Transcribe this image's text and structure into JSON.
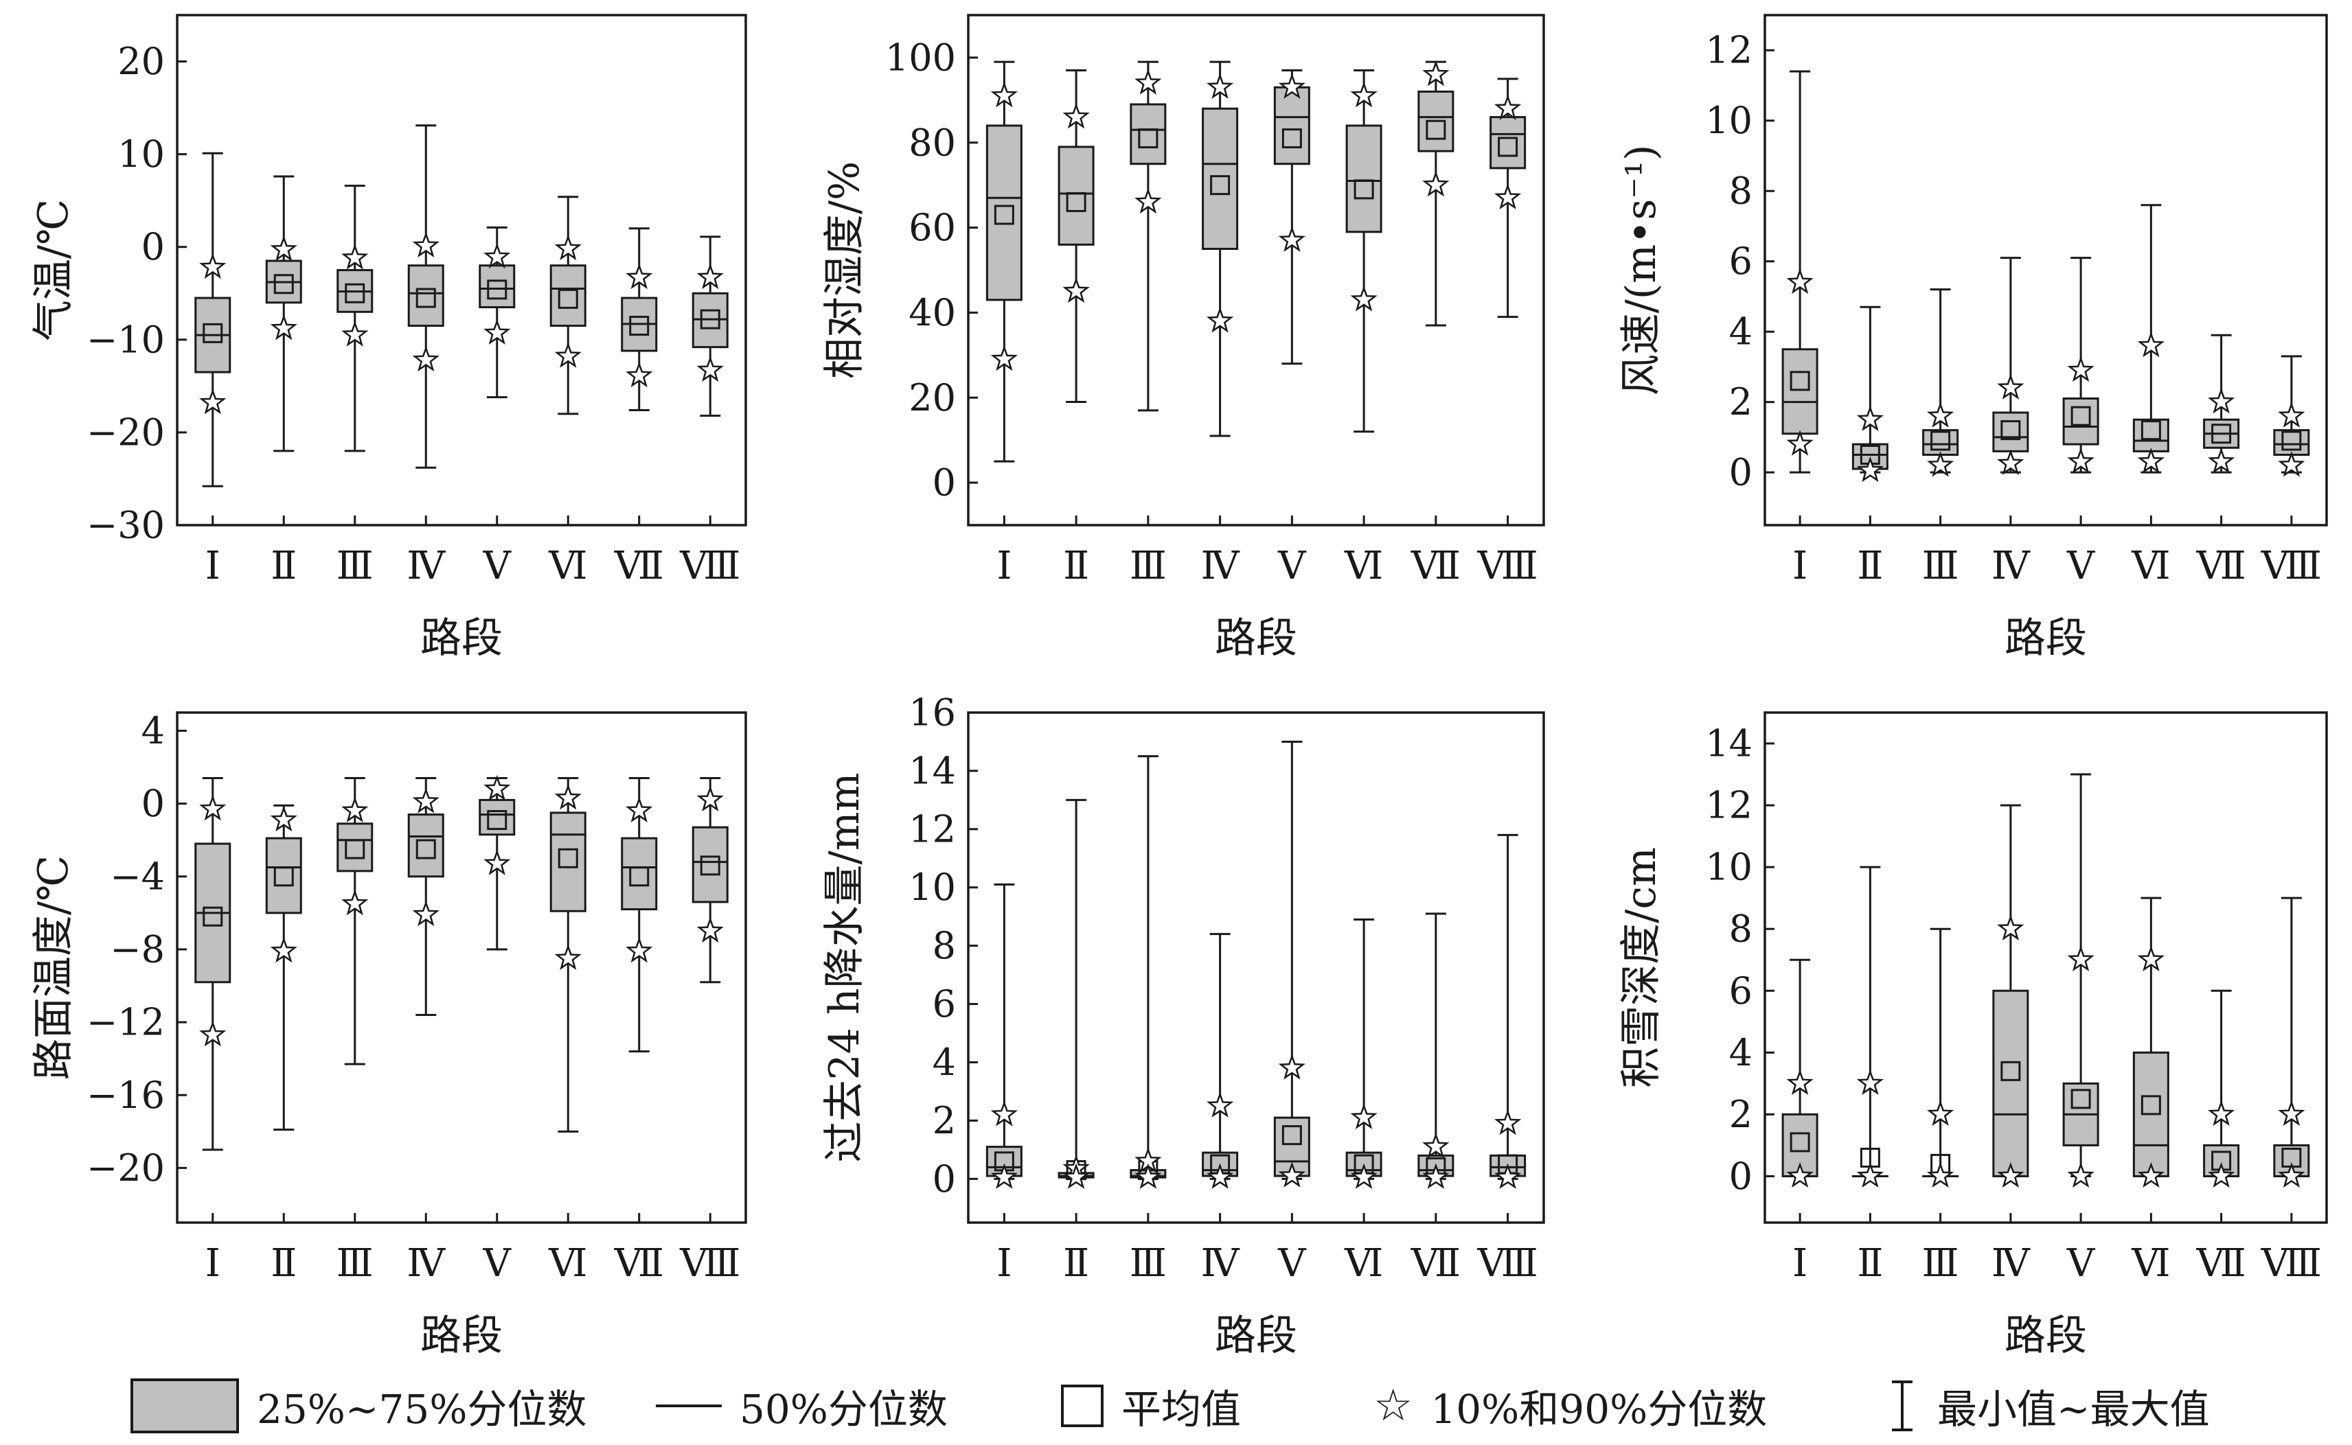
{
  "categories": [
    "Ⅰ",
    "Ⅱ",
    "Ⅲ",
    "Ⅳ",
    "Ⅴ",
    "Ⅵ",
    "Ⅶ",
    "Ⅷ"
  ],
  "xlabel": "路段",
  "chart_data": [
    {
      "type": "box",
      "ylabel": "气温/℃",
      "ylim": [
        -30,
        25
      ],
      "yticks": [
        -30,
        -20,
        -10,
        0,
        10,
        20
      ],
      "ytick_labels": [
        "−30",
        "−20",
        "−10",
        "0",
        "10",
        "20"
      ],
      "series": [
        {
          "min": -25.8,
          "p10": -16.8,
          "q1": -13.5,
          "median": -9.5,
          "q3": -5.5,
          "p90": -2.2,
          "max": 10.1,
          "mean": -9.3
        },
        {
          "min": -22.0,
          "p10": -8.8,
          "q1": -6.0,
          "median": -3.8,
          "q3": -1.5,
          "p90": -0.3,
          "max": 7.6,
          "mean": -4.0
        },
        {
          "min": -22.0,
          "p10": -9.5,
          "q1": -7.0,
          "median": -4.8,
          "q3": -2.5,
          "p90": -1.2,
          "max": 6.6,
          "mean": -5.0
        },
        {
          "min": -23.8,
          "p10": -12.2,
          "q1": -8.5,
          "median": -5.0,
          "q3": -2.0,
          "p90": 0.1,
          "max": 13.1,
          "mean": -5.5
        },
        {
          "min": -16.2,
          "p10": -9.3,
          "q1": -6.5,
          "median": -4.5,
          "q3": -2.0,
          "p90": -1.1,
          "max": 2.1,
          "mean": -4.6
        },
        {
          "min": -18.0,
          "p10": -11.8,
          "q1": -8.5,
          "median": -4.5,
          "q3": -2.0,
          "p90": -0.2,
          "max": 5.4,
          "mean": -5.6
        },
        {
          "min": -17.6,
          "p10": -13.9,
          "q1": -11.2,
          "median": -8.3,
          "q3": -5.5,
          "p90": -3.3,
          "max": 2.0,
          "mean": -8.5
        },
        {
          "min": -18.2,
          "p10": -13.3,
          "q1": -10.8,
          "median": -7.8,
          "q3": -5.0,
          "p90": -3.3,
          "max": 1.1,
          "mean": -7.8
        }
      ]
    },
    {
      "type": "box",
      "ylabel": "相对湿度/%",
      "ylim": [
        -10,
        110
      ],
      "yticks": [
        0,
        20,
        40,
        60,
        80,
        100
      ],
      "ytick_labels": [
        "0",
        "20",
        "40",
        "60",
        "80",
        "100"
      ],
      "series": [
        {
          "min": 5,
          "p10": 29,
          "q1": 43,
          "median": 67,
          "q3": 84,
          "p90": 91,
          "max": 99,
          "mean": 63
        },
        {
          "min": 19,
          "p10": 45,
          "q1": 56,
          "median": 68,
          "q3": 79,
          "p90": 86,
          "max": 97,
          "mean": 66
        },
        {
          "min": 17,
          "p10": 66,
          "q1": 75,
          "median": 83,
          "q3": 89,
          "p90": 94,
          "max": 99,
          "mean": 81
        },
        {
          "min": 11,
          "p10": 38,
          "q1": 55,
          "median": 75,
          "q3": 88,
          "p90": 93,
          "max": 99,
          "mean": 70
        },
        {
          "min": 28,
          "p10": 57,
          "q1": 75,
          "median": 86,
          "q3": 93,
          "p90": 93,
          "max": 97,
          "mean": 81
        },
        {
          "min": 12,
          "p10": 43,
          "q1": 59,
          "median": 71,
          "q3": 84,
          "p90": 91,
          "max": 97,
          "mean": 69
        },
        {
          "min": 37,
          "p10": 70,
          "q1": 78,
          "median": 86,
          "q3": 92,
          "p90": 96,
          "max": 99,
          "mean": 83
        },
        {
          "min": 39,
          "p10": 67,
          "q1": 74,
          "median": 82,
          "q3": 86,
          "p90": 88,
          "max": 95,
          "mean": 79
        }
      ]
    },
    {
      "type": "box",
      "ylabel": "风速/(m•s⁻¹)",
      "ylim": [
        -1.5,
        13
      ],
      "yticks": [
        0,
        2,
        4,
        6,
        8,
        10,
        12
      ],
      "ytick_labels": [
        "0",
        "2",
        "4",
        "6",
        "8",
        "10",
        "12"
      ],
      "series": [
        {
          "min": 0,
          "p10": 0.8,
          "q1": 1.1,
          "median": 2.0,
          "q3": 3.5,
          "p90": 5.4,
          "max": 11.4,
          "mean": 2.6
        },
        {
          "min": 0,
          "p10": 0.05,
          "q1": 0.1,
          "median": 0.5,
          "q3": 0.8,
          "p90": 1.5,
          "max": 4.7,
          "mean": 0.5
        },
        {
          "min": 0,
          "p10": 0.2,
          "q1": 0.5,
          "median": 0.8,
          "q3": 1.2,
          "p90": 1.6,
          "max": 5.2,
          "mean": 0.9
        },
        {
          "min": 0,
          "p10": 0.25,
          "q1": 0.6,
          "median": 1.0,
          "q3": 1.7,
          "p90": 2.4,
          "max": 6.1,
          "mean": 1.2
        },
        {
          "min": 0,
          "p10": 0.3,
          "q1": 0.8,
          "median": 1.3,
          "q3": 2.1,
          "p90": 2.9,
          "max": 6.1,
          "mean": 1.6
        },
        {
          "min": 0,
          "p10": 0.3,
          "q1": 0.6,
          "median": 0.9,
          "q3": 1.5,
          "p90": 3.6,
          "max": 7.6,
          "mean": 1.2
        },
        {
          "min": 0,
          "p10": 0.3,
          "q1": 0.7,
          "median": 1.1,
          "q3": 1.5,
          "p90": 2.0,
          "max": 3.9,
          "mean": 1.1
        },
        {
          "min": 0,
          "p10": 0.2,
          "q1": 0.5,
          "median": 0.8,
          "q3": 1.2,
          "p90": 1.6,
          "max": 3.3,
          "mean": 0.9
        }
      ]
    },
    {
      "type": "box",
      "ylabel": "路面温度/℃",
      "ylim": [
        -23,
        5
      ],
      "yticks": [
        -20,
        -16,
        -12,
        -8,
        -4,
        0,
        4
      ],
      "ytick_labels": [
        "−20",
        "−16",
        "−12",
        "−8",
        "−4",
        "0",
        "4"
      ],
      "series": [
        {
          "min": -19.0,
          "p10": -12.7,
          "q1": -9.8,
          "median": -6.0,
          "q3": -2.2,
          "p90": -0.3,
          "max": 1.4,
          "mean": -6.2
        },
        {
          "min": -17.9,
          "p10": -8.1,
          "q1": -6.0,
          "median": -3.5,
          "q3": -1.9,
          "p90": -0.9,
          "max": -0.1,
          "mean": -4.0
        },
        {
          "min": -14.3,
          "p10": -5.5,
          "q1": -3.7,
          "median": -2.0,
          "q3": -1.1,
          "p90": -0.4,
          "max": 1.4,
          "mean": -2.5
        },
        {
          "min": -11.6,
          "p10": -6.1,
          "q1": -4.0,
          "median": -1.8,
          "q3": -0.6,
          "p90": 0.1,
          "max": 1.4,
          "mean": -2.5
        },
        {
          "min": -8.0,
          "p10": -3.3,
          "q1": -1.7,
          "median": -0.6,
          "q3": 0.2,
          "p90": 0.8,
          "max": 1.4,
          "mean": -0.9
        },
        {
          "min": -18.0,
          "p10": -8.5,
          "q1": -5.9,
          "median": -1.7,
          "q3": -0.5,
          "p90": 0.3,
          "max": 1.4,
          "mean": -3.0
        },
        {
          "min": -13.6,
          "p10": -8.1,
          "q1": -5.8,
          "median": -3.5,
          "q3": -1.9,
          "p90": -0.4,
          "max": 1.4,
          "mean": -4.0
        },
        {
          "min": -9.8,
          "p10": -7.0,
          "q1": -5.4,
          "median": -3.2,
          "q3": -1.3,
          "p90": 0.2,
          "max": 1.4,
          "mean": -3.4
        }
      ]
    },
    {
      "type": "box",
      "ylabel": "过去24 h降水量/mm",
      "ylim": [
        -1.5,
        16
      ],
      "yticks": [
        0,
        2,
        4,
        6,
        8,
        10,
        12,
        14,
        16
      ],
      "ytick_labels": [
        "0",
        "2",
        "4",
        "6",
        "8",
        "10",
        "12",
        "14",
        "16"
      ],
      "series": [
        {
          "min": 0,
          "p10": 0.05,
          "q1": 0.1,
          "median": 0.4,
          "q3": 1.1,
          "p90": 2.2,
          "max": 10.1,
          "mean": 0.6
        },
        {
          "min": 0,
          "p10": 0.05,
          "q1": 0.05,
          "median": 0.1,
          "q3": 0.2,
          "p90": 0.35,
          "max": 13.0,
          "mean": 0.3
        },
        {
          "min": 0,
          "p10": 0.05,
          "q1": 0.05,
          "median": 0.1,
          "q3": 0.3,
          "p90": 0.6,
          "max": 14.5,
          "mean": 0.3
        },
        {
          "min": 0,
          "p10": 0.05,
          "q1": 0.1,
          "median": 0.3,
          "q3": 0.9,
          "p90": 2.5,
          "max": 8.4,
          "mean": 0.5
        },
        {
          "min": 0,
          "p10": 0.1,
          "q1": 0.1,
          "median": 0.6,
          "q3": 2.1,
          "p90": 3.8,
          "max": 15.0,
          "mean": 1.5
        },
        {
          "min": 0,
          "p10": 0.05,
          "q1": 0.1,
          "median": 0.3,
          "q3": 0.9,
          "p90": 2.1,
          "max": 8.9,
          "mean": 0.5
        },
        {
          "min": 0,
          "p10": 0.05,
          "q1": 0.1,
          "median": 0.3,
          "q3": 0.8,
          "p90": 1.1,
          "max": 9.1,
          "mean": 0.4
        },
        {
          "min": 0,
          "p10": 0.05,
          "q1": 0.1,
          "median": 0.4,
          "q3": 0.8,
          "p90": 1.9,
          "max": 11.8,
          "mean": 0.5
        }
      ]
    },
    {
      "type": "box",
      "ylabel": "积雪深度/cm",
      "ylim": [
        -1.5,
        15
      ],
      "yticks": [
        0,
        2,
        4,
        6,
        8,
        10,
        12,
        14
      ],
      "ytick_labels": [
        "0",
        "2",
        "4",
        "6",
        "8",
        "10",
        "12",
        "14"
      ],
      "series": [
        {
          "min": 0,
          "p10": 0,
          "q1": 0,
          "median": 0,
          "q3": 2.0,
          "p90": 3.0,
          "max": 7.0,
          "mean": 1.1
        },
        {
          "min": 0,
          "p10": 0,
          "q1": 0,
          "median": 0,
          "q3": 0,
          "p90": 3.0,
          "max": 10.0,
          "mean": 0.6
        },
        {
          "min": 0,
          "p10": 0,
          "q1": 0,
          "median": 0,
          "q3": 0,
          "p90": 2.0,
          "max": 8.0,
          "mean": 0.4
        },
        {
          "min": 0,
          "p10": 0,
          "q1": 0,
          "median": 2.0,
          "q3": 6.0,
          "p90": 8.0,
          "max": 12.0,
          "mean": 3.4
        },
        {
          "min": 0,
          "p10": 0,
          "q1": 1.0,
          "median": 2.0,
          "q3": 3.0,
          "p90": 7.0,
          "max": 13.0,
          "mean": 2.5
        },
        {
          "min": 0,
          "p10": 0,
          "q1": 0,
          "median": 1.0,
          "q3": 4.0,
          "p90": 7.0,
          "max": 9.0,
          "mean": 2.3
        },
        {
          "min": 0,
          "p10": 0,
          "q1": 0,
          "median": 0,
          "q3": 1.0,
          "p90": 2.0,
          "max": 6.0,
          "mean": 0.5
        },
        {
          "min": 0,
          "p10": 0,
          "q1": 0,
          "median": 0,
          "q3": 1.0,
          "p90": 2.0,
          "max": 9.0,
          "mean": 0.6
        }
      ]
    }
  ],
  "legend": {
    "iqr": "25%~75%分位数",
    "median": "50%分位数",
    "mean": "平均值",
    "p10_p90": "10%和90%分位数",
    "range": "最小值~最大值"
  }
}
